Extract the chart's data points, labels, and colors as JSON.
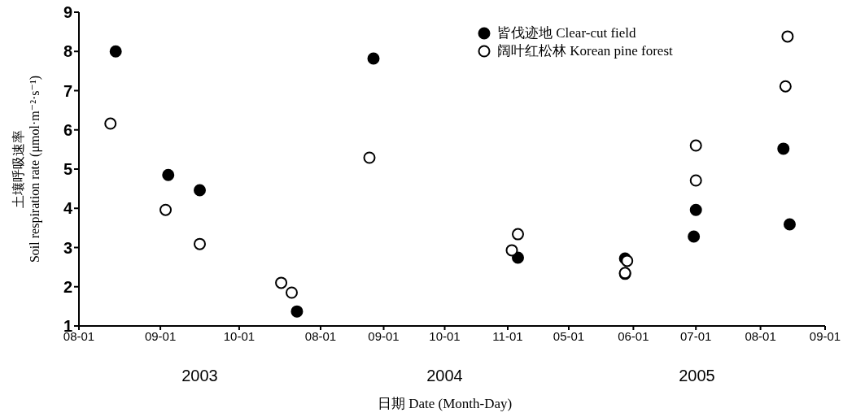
{
  "chart_data": [
    {
      "type": "scatter",
      "ylabel": "土壤呼吸速率\nSoil respiration rate (μmol·m⁻²·s⁻¹)",
      "annotations": [
        "2003"
      ],
      "xlim": [
        "2003-08-01",
        "2003-11-01"
      ],
      "xticks": [
        {
          "value": "2003-08-01",
          "label": "08-01"
        },
        {
          "value": "2003-09-01",
          "label": "09-01"
        },
        {
          "value": "2003-10-01",
          "label": "10-01"
        }
      ],
      "ylim": [
        1,
        9
      ],
      "yticks": [
        1,
        2,
        3,
        4,
        5,
        6,
        7,
        8,
        9
      ],
      "marker": "circle",
      "series": [
        {
          "color": "#000000",
          "x": [
            "2003-08-15",
            "2003-09-04",
            "2003-09-16",
            "2003-10-23"
          ],
          "values": [
            8.0,
            4.85,
            4.46,
            1.37
          ]
        },
        {
          "color": "#ffffff",
          "x": [
            "2003-08-13",
            "2003-09-03",
            "2003-09-16",
            "2003-10-17",
            "2003-10-21"
          ],
          "values": [
            6.16,
            3.96,
            3.09,
            2.1,
            1.85
          ]
        }
      ]
    },
    {
      "type": "scatter",
      "xlabel": "日期 Date (Month-Day)",
      "annotations": [
        "2004"
      ],
      "tick_labels": "x",
      "xlim": [
        "2004-08-01",
        "2004-12-01"
      ],
      "xticks": [
        {
          "value": "2004-08-01",
          "label": "08-01"
        },
        {
          "value": "2004-09-01",
          "label": "09-01"
        },
        {
          "value": "2004-10-01",
          "label": "10-01"
        },
        {
          "value": "2004-11-01",
          "label": "11-01"
        }
      ],
      "ylim": [
        1,
        9
      ],
      "marker": "circle",
      "series": [
        {
          "color": "#000000",
          "x": [
            "2004-08-27",
            "2004-11-06"
          ],
          "values": [
            7.82,
            2.74
          ]
        },
        {
          "color": "#ffffff",
          "x": [
            "2004-08-25",
            "2004-11-03",
            "2004-11-06"
          ],
          "values": [
            5.29,
            2.93,
            3.34
          ]
        }
      ]
    },
    {
      "type": "scatter",
      "annotations": [
        "2005"
      ],
      "tick_labels": "x",
      "legend": "top",
      "xlim": [
        "2005-05-01",
        "2005-09-01"
      ],
      "xticks": [
        {
          "value": "2005-05-01",
          "label": "05-01"
        },
        {
          "value": "2005-06-01",
          "label": "06-01"
        },
        {
          "value": "2005-07-01",
          "label": "07-01"
        },
        {
          "value": "2005-08-01",
          "label": "08-01"
        },
        {
          "value": "2005-09-01",
          "label": "09-01"
        }
      ],
      "ylim": [
        1,
        9
      ],
      "marker": "circle",
      "series": [
        {
          "name": "皆伐迹地 Clear-cut field",
          "color": "#000000",
          "x": [
            "2005-05-28",
            "2005-05-28",
            "2005-07-01",
            "2005-06-30",
            "2005-08-12",
            "2005-08-15"
          ],
          "values": [
            2.72,
            2.33,
            3.96,
            3.28,
            5.52,
            3.59
          ]
        },
        {
          "name": "阔叶红松林 Korean pine forest",
          "color": "#ffffff",
          "x": [
            "2005-05-29",
            "2005-05-28",
            "2005-07-01",
            "2005-07-01",
            "2005-08-14",
            "2005-08-13"
          ],
          "values": [
            2.66,
            2.35,
            5.6,
            4.71,
            8.38,
            7.11
          ]
        }
      ]
    }
  ]
}
